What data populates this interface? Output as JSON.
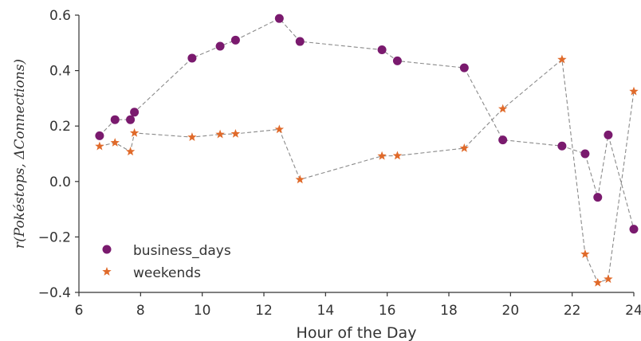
{
  "chart_data": {
    "type": "scatter",
    "title": "",
    "xlabel": "Hour of the Day",
    "ylabel": "r(Pokéstops, ΔConnections)",
    "xlim": [
      6,
      24
    ],
    "ylim": [
      -0.4,
      0.6
    ],
    "x_ticks": [
      "6",
      "8",
      "10",
      "12",
      "14",
      "16",
      "18",
      "20",
      "22",
      "24"
    ],
    "y_ticks": [
      "−0.4",
      "−0.2",
      "0.0",
      "0.2",
      "0.4",
      "0.6"
    ],
    "grid": false,
    "legend_position": "lower-left",
    "line_style": "dashed gray connecting line",
    "series": [
      {
        "name": "business_days",
        "marker": "circle",
        "color": "#7a1a6e",
        "x": [
          6.67,
          7.17,
          7.67,
          7.8,
          9.67,
          10.58,
          11.08,
          12.5,
          13.17,
          15.83,
          16.33,
          18.5,
          19.75,
          21.67,
          22.42,
          22.83,
          23.17,
          24.0
        ],
        "y": [
          0.165,
          0.223,
          0.223,
          0.25,
          0.445,
          0.488,
          0.51,
          0.588,
          0.505,
          0.475,
          0.435,
          0.41,
          0.15,
          0.128,
          0.1,
          -0.057,
          0.168,
          -0.172
        ]
      },
      {
        "name": "weekends",
        "marker": "star",
        "color": "#e06a2a",
        "x": [
          6.67,
          7.17,
          7.67,
          7.8,
          9.67,
          10.58,
          11.08,
          12.5,
          13.17,
          15.83,
          16.33,
          18.5,
          19.75,
          21.67,
          22.42,
          22.83,
          23.17,
          24.0
        ],
        "y": [
          0.127,
          0.14,
          0.108,
          0.175,
          0.16,
          0.17,
          0.172,
          0.188,
          0.007,
          0.092,
          0.093,
          0.12,
          0.262,
          0.44,
          -0.262,
          -0.365,
          -0.352,
          0.325
        ]
      }
    ]
  }
}
